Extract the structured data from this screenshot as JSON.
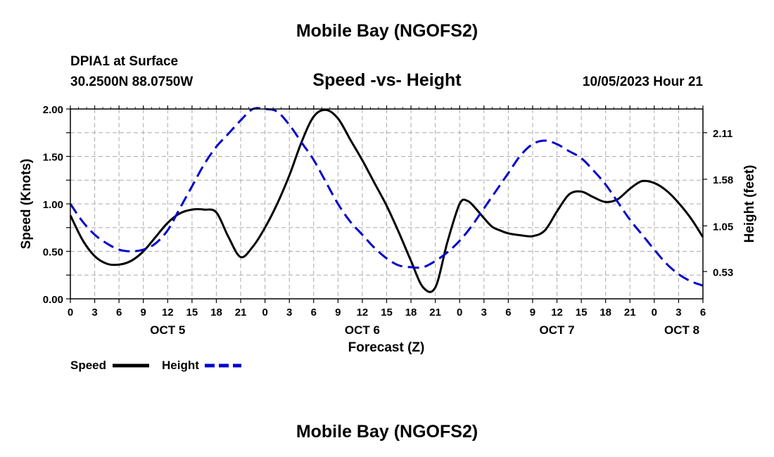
{
  "header": {
    "title": "Mobile Bay (NGOFS2)",
    "station": "DPIA1 at Surface",
    "coords": "30.2500N  88.0750W",
    "datetime": "10/05/2023 Hour 21"
  },
  "footer": {
    "title": "Mobile Bay (NGOFS2)"
  },
  "legend": {
    "speed_label": "Speed",
    "height_label": "Height"
  },
  "colors": {
    "speed": "#000000",
    "height": "#0000cc",
    "grid": "#aaaaaa"
  },
  "chart_data": {
    "type": "line",
    "title": "Speed -vs- Height",
    "xlabel": "Forecast (Z)",
    "ylabel": "Speed (Knots)",
    "y2label": "Height (feet)",
    "xlim": [
      0,
      78
    ],
    "ylim": [
      0,
      2.0
    ],
    "y2lim": [
      0.22,
      2.38
    ],
    "x_ticks": [
      0,
      3,
      6,
      9,
      12,
      15,
      18,
      21,
      24,
      27,
      30,
      33,
      36,
      39,
      42,
      45,
      48,
      51,
      54,
      57,
      60,
      63,
      66,
      69,
      72,
      75,
      78
    ],
    "x_tick_labels": [
      "0",
      "3",
      "6",
      "9",
      "12",
      "15",
      "18",
      "21",
      "0",
      "3",
      "6",
      "9",
      "12",
      "15",
      "18",
      "21",
      "0",
      "3",
      "6",
      "9",
      "12",
      "15",
      "18",
      "21",
      "0",
      "3",
      "6"
    ],
    "date_labels": [
      {
        "x": 12,
        "label": "OCT 5"
      },
      {
        "x": 36,
        "label": "OCT 6"
      },
      {
        "x": 60,
        "label": "OCT 7"
      },
      {
        "x": 78,
        "label": "OCT 8"
      }
    ],
    "y_ticks": [
      0,
      0.25,
      0.5,
      0.75,
      1.0,
      1.25,
      1.5,
      1.75,
      2.0
    ],
    "y_tick_labels": [
      "0.00",
      "",
      "0.50",
      "",
      "1.00",
      "",
      "1.50",
      "",
      "2.00"
    ],
    "y2_ticks": [
      0.53,
      1.05,
      1.58,
      2.11
    ],
    "y2_tick_labels": [
      "0.53",
      "1.05",
      "1.58",
      "2.11"
    ],
    "grid": true,
    "series": [
      {
        "name": "Speed",
        "axis": "left",
        "x": [
          0,
          1.5,
          3,
          4.5,
          6,
          7.5,
          9,
          10.5,
          12,
          13.5,
          15,
          16.5,
          18,
          19.5,
          21,
          22.5,
          24,
          25.5,
          27,
          28.5,
          30,
          31.5,
          33,
          34.5,
          36,
          37.5,
          39,
          40.5,
          42,
          43.5,
          45,
          46.5,
          48,
          49,
          50,
          51,
          52,
          53,
          54,
          55.5,
          57,
          58.5,
          60,
          61.5,
          63,
          64.5,
          66,
          67.5,
          69,
          70.5,
          72,
          73.5,
          75,
          76.5,
          78
        ],
        "values": [
          0.88,
          0.62,
          0.45,
          0.37,
          0.36,
          0.4,
          0.5,
          0.65,
          0.8,
          0.9,
          0.94,
          0.94,
          0.91,
          0.65,
          0.44,
          0.55,
          0.75,
          1.0,
          1.3,
          1.65,
          1.92,
          1.99,
          1.9,
          1.68,
          1.46,
          1.22,
          0.98,
          0.7,
          0.4,
          0.12,
          0.12,
          0.6,
          1.0,
          1.03,
          0.95,
          0.85,
          0.76,
          0.72,
          0.69,
          0.67,
          0.66,
          0.72,
          0.92,
          1.1,
          1.13,
          1.07,
          1.02,
          1.05,
          1.16,
          1.24,
          1.22,
          1.14,
          1.01,
          0.85,
          0.65
        ]
      },
      {
        "name": "Height",
        "axis": "right",
        "x": [
          0,
          1.5,
          3,
          4.5,
          6,
          7.5,
          9,
          10.5,
          12,
          13.5,
          15,
          16.5,
          18,
          19.5,
          21,
          22.5,
          24,
          25.5,
          27,
          28.5,
          30,
          31.5,
          33,
          34.5,
          36,
          37.5,
          39,
          40.5,
          42,
          43.5,
          45,
          46.5,
          48,
          49.5,
          51,
          52.5,
          54,
          55.5,
          57,
          58.5,
          60,
          61.5,
          63,
          64.5,
          66,
          67.5,
          69,
          70.5,
          72,
          73.5,
          75,
          76.5,
          78
        ],
        "values": [
          1.3,
          1.1,
          0.95,
          0.85,
          0.78,
          0.76,
          0.78,
          0.85,
          1.0,
          1.25,
          1.5,
          1.75,
          1.95,
          2.1,
          2.25,
          2.38,
          2.4,
          2.35,
          2.2,
          2.0,
          1.8,
          1.55,
          1.3,
          1.1,
          0.95,
          0.8,
          0.68,
          0.6,
          0.58,
          0.58,
          0.65,
          0.75,
          0.88,
          1.05,
          1.25,
          1.45,
          1.65,
          1.85,
          1.98,
          2.02,
          1.98,
          1.9,
          1.82,
          1.68,
          1.52,
          1.32,
          1.12,
          0.95,
          0.78,
          0.62,
          0.5,
          0.42,
          0.37
        ]
      }
    ]
  }
}
